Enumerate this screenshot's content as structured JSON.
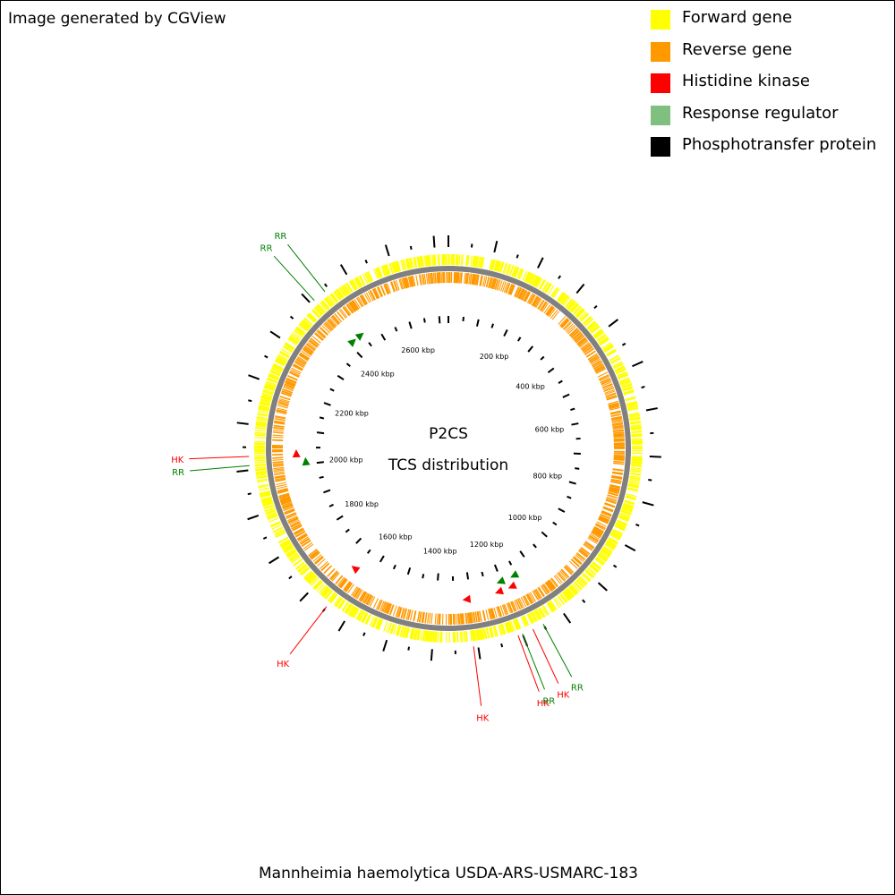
{
  "credit": "Image generated by CGView",
  "legend": [
    {
      "label": "Forward gene",
      "color": "#ffff00"
    },
    {
      "label": "Reverse gene",
      "color": "#ff9900"
    },
    {
      "label": "Histidine kinase",
      "color": "#ff0000"
    },
    {
      "label": "Response regulator",
      "color": "#7fbf7f"
    },
    {
      "label": "Phosphotransfer protein",
      "color": "#000000"
    }
  ],
  "center": {
    "line1": "P2CS",
    "line2": "TCS distribution"
  },
  "footer": "Mannheimia haemolytica USDA-ARS-USMARC-183",
  "genome": {
    "length_kbp": 2730,
    "scale_labels": [
      {
        "kbp": 200,
        "text": "200 kbp"
      },
      {
        "kbp": 400,
        "text": "400 kbp"
      },
      {
        "kbp": 600,
        "text": "600 kbp"
      },
      {
        "kbp": 800,
        "text": "800 kbp"
      },
      {
        "kbp": 1000,
        "text": "1000 kbp"
      },
      {
        "kbp": 1200,
        "text": "1200 kbp"
      },
      {
        "kbp": 1400,
        "text": "1400 kbp"
      },
      {
        "kbp": 1600,
        "text": "1600 kbp"
      },
      {
        "kbp": 1800,
        "text": "1800 kbp"
      },
      {
        "kbp": 2000,
        "text": "2000 kbp"
      },
      {
        "kbp": 2200,
        "text": "2200 kbp"
      },
      {
        "kbp": 2400,
        "text": "2400 kbp"
      },
      {
        "kbp": 2600,
        "text": "2600 kbp"
      }
    ]
  },
  "callouts": [
    {
      "text": "RR",
      "type": "RR",
      "kbp": 2440
    },
    {
      "text": "RR",
      "type": "RR",
      "kbp": 2410
    },
    {
      "text": "HK",
      "type": "HK",
      "kbp": 2030
    },
    {
      "text": "RR",
      "type": "RR",
      "kbp": 2010
    },
    {
      "text": "HK",
      "type": "HK",
      "kbp": 1650
    },
    {
      "text": "HK",
      "type": "HK",
      "kbp": 1310
    },
    {
      "text": "HK",
      "type": "HK",
      "kbp": 1210
    },
    {
      "text": "RR",
      "type": "RR",
      "kbp": 1200
    },
    {
      "text": "HK",
      "type": "HK",
      "kbp": 1175
    },
    {
      "text": "RR",
      "type": "RR",
      "kbp": 1150
    }
  ],
  "tcs_markers": [
    {
      "type": "RR",
      "kbp": 2440
    },
    {
      "type": "RR",
      "kbp": 2410
    },
    {
      "type": "HK",
      "kbp": 2030
    },
    {
      "type": "RR",
      "kbp": 2005
    },
    {
      "type": "HK",
      "kbp": 1650
    },
    {
      "type": "HK",
      "kbp": 1310
    },
    {
      "type": "HK",
      "kbp": 1215
    },
    {
      "type": "RR",
      "kbp": 1200
    },
    {
      "type": "HK",
      "kbp": 1175
    },
    {
      "type": "RR",
      "kbp": 1155
    }
  ],
  "colors": {
    "forward": "#ffff00",
    "reverse": "#ff9900",
    "hk": "#ff0000",
    "rr": "#007f00",
    "rr_legend": "#7fbf7f",
    "backbone": "#808080",
    "ticks": "#000000"
  }
}
